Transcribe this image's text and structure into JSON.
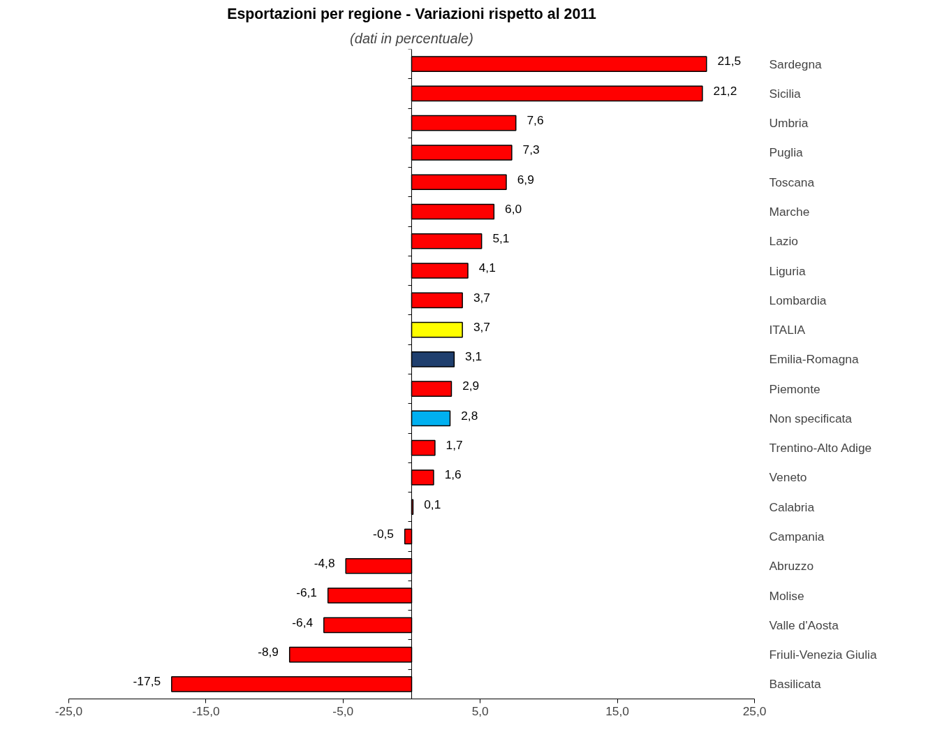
{
  "chart_data": {
    "type": "bar",
    "orientation": "horizontal",
    "title": "Esportazioni per regione - Variazioni rispetto al 2011",
    "subtitle": "(dati in percentuale)",
    "categories": [
      "Sardegna",
      "Sicilia",
      "Umbria",
      "Puglia",
      "Toscana",
      "Marche",
      "Lazio",
      "Liguria",
      "Lombardia",
      "ITALIA",
      "Emilia-Romagna",
      "Piemonte",
      "Non specificata",
      "Trentino-Alto Adige",
      "Veneto",
      "Calabria",
      "Campania",
      "Abruzzo",
      "Molise",
      "Valle d'Aosta",
      "Friuli-Venezia Giulia",
      "Basilicata"
    ],
    "values": [
      21.5,
      21.2,
      7.6,
      7.3,
      6.9,
      6.0,
      5.1,
      4.1,
      3.7,
      3.7,
      3.1,
      2.9,
      2.8,
      1.7,
      1.6,
      0.1,
      -0.5,
      -4.8,
      -6.1,
      -6.4,
      -8.9,
      -17.5
    ],
    "value_labels": [
      "21,5",
      "21,2",
      "7,6",
      "7,3",
      "6,9",
      "6,0",
      "5,1",
      "4,1",
      "3,7",
      "3,7",
      "3,1",
      "2,9",
      "2,8",
      "1,7",
      "1,6",
      "0,1",
      "-0,5",
      "-4,8",
      "-6,1",
      "-6,4",
      "-8,9",
      "-17,5"
    ],
    "colors": [
      "#ff0000",
      "#ff0000",
      "#ff0000",
      "#ff0000",
      "#ff0000",
      "#ff0000",
      "#ff0000",
      "#ff0000",
      "#ff0000",
      "#ffff00",
      "#1f3f6e",
      "#ff0000",
      "#00b0f0",
      "#ff0000",
      "#ff0000",
      "#ff0000",
      "#ff0000",
      "#ff0000",
      "#ff0000",
      "#ff0000",
      "#ff0000",
      "#ff0000"
    ],
    "xlim": [
      -25,
      25
    ],
    "xticks": [
      {
        "value": -25,
        "label": "-25,0"
      },
      {
        "value": -15,
        "label": "-15,0"
      },
      {
        "value": -5,
        "label": "-5,0"
      },
      {
        "value": 5,
        "label": "5,0"
      },
      {
        "value": 15,
        "label": "15,0"
      },
      {
        "value": 25,
        "label": "25,0"
      }
    ],
    "grid": false
  }
}
